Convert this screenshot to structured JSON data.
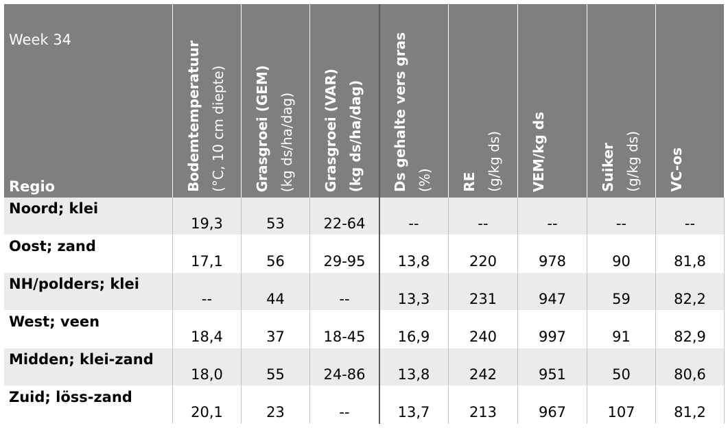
{
  "header": {
    "week": "Week 34",
    "region_label": "Regio",
    "columns": [
      {
        "title": "Bodemtemperatuur",
        "unit": "(°C, 10 cm diepte)",
        "unit_bold": false
      },
      {
        "title": "Grasgroei (GEM)",
        "unit": "(kg ds/ha/dag)",
        "unit_bold": false
      },
      {
        "title": "Grasgroei (VAR)",
        "unit": "(kg ds/ha/dag)",
        "unit_bold": true
      },
      {
        "title": "Ds gehalte vers gras",
        "unit": "(%)",
        "unit_bold": false
      },
      {
        "title": "RE",
        "unit": "(g/kg ds)",
        "unit_bold": false
      },
      {
        "title": "VEM/kg ds",
        "unit_bold": false
      },
      {
        "title": "Suiker",
        "unit": "(g/kg ds)",
        "unit_bold": false
      },
      {
        "title": "VC-os",
        "unit_bold": false
      }
    ]
  },
  "table": {
    "rows": [
      {
        "region": "Noord; klei",
        "values": [
          "19,3",
          "53",
          "22-64",
          "--",
          "--",
          "--",
          "--",
          "--"
        ]
      },
      {
        "region": "Oost; zand",
        "values": [
          "17,1",
          "56",
          "29-95",
          "13,8",
          "220",
          "978",
          "90",
          "81,8"
        ]
      },
      {
        "region": "NH/polders; klei",
        "values": [
          "--",
          "44",
          "--",
          "13,3",
          "231",
          "947",
          "59",
          "82,2"
        ]
      },
      {
        "region": "West; veen",
        "values": [
          "18,4",
          "37",
          "18-45",
          "16,9",
          "240",
          "997",
          "91",
          "82,9"
        ]
      },
      {
        "region": "Midden; klei-zand",
        "values": [
          "18,0",
          "55",
          "24-86",
          "13,8",
          "242",
          "951",
          "50",
          "80,6"
        ]
      },
      {
        "region": "Zuid; löss-zand",
        "values": [
          "20,1",
          "23",
          "--",
          "13,7",
          "213",
          "967",
          "107",
          "81,2"
        ]
      }
    ]
  }
}
